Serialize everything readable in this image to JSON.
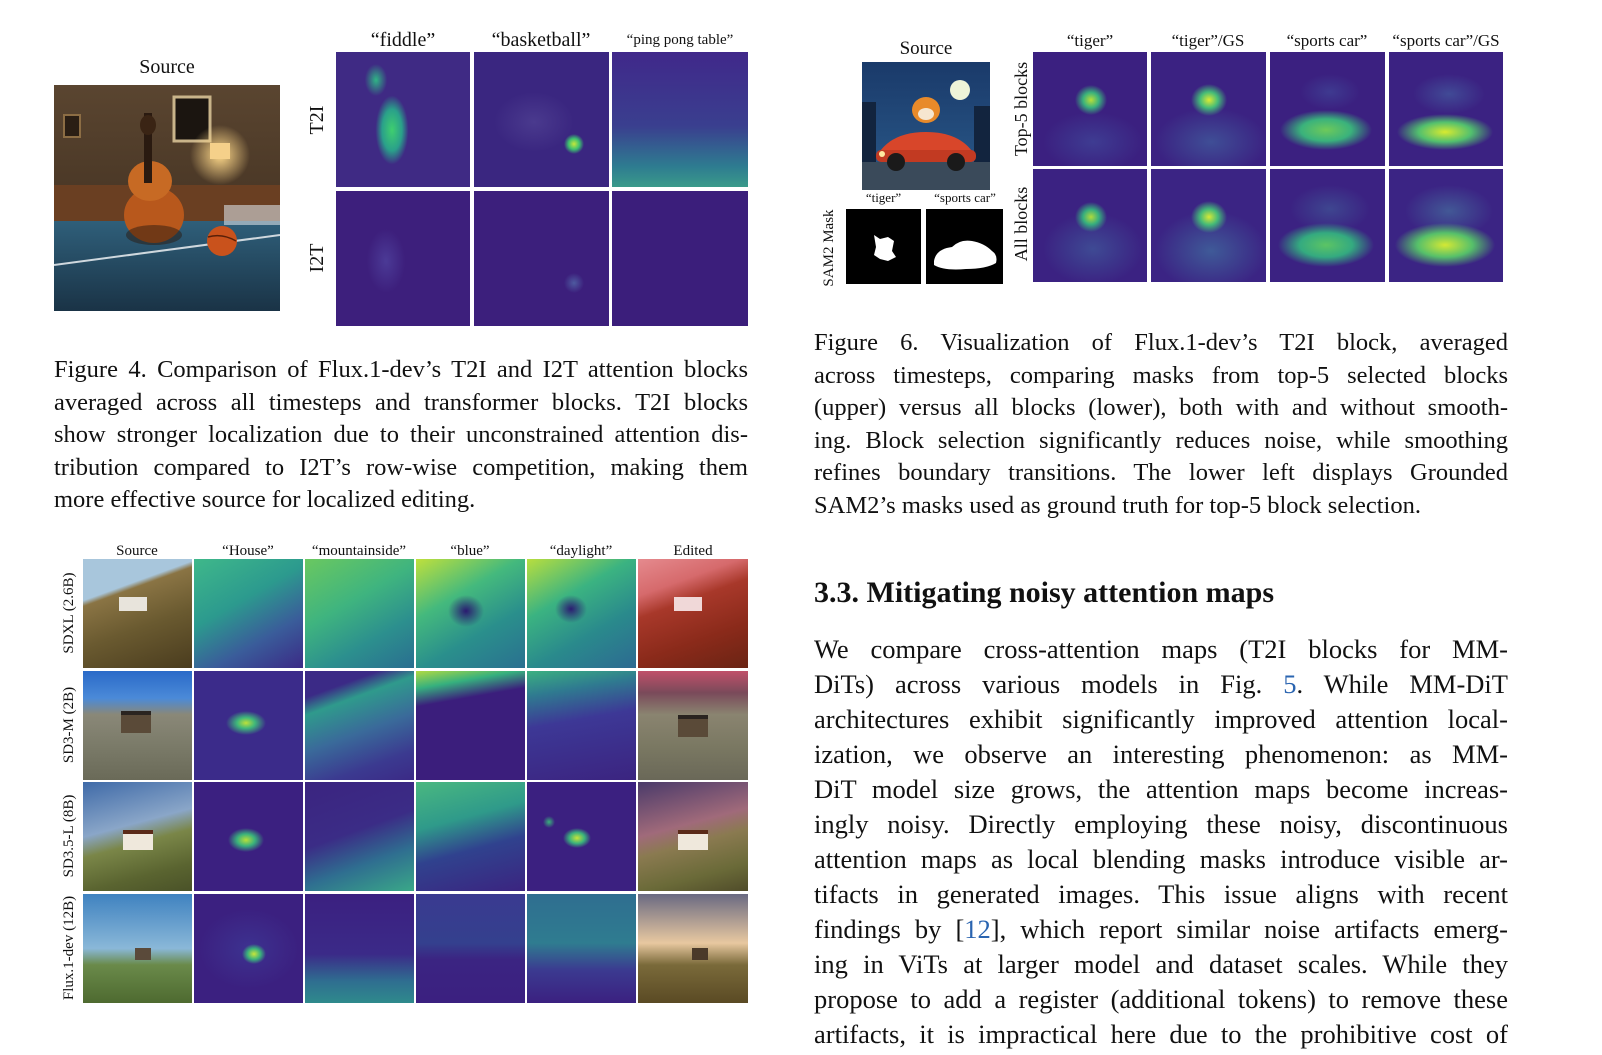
{
  "fig4": {
    "source_label": "Source",
    "col_labels": [
      "“fiddle”",
      "“basketball”",
      "“ping pong table”"
    ],
    "row_labels": [
      "T2I",
      "I2T"
    ],
    "caption_lines": [
      "Figure 4. Comparison of Flux.1-dev’s T2I and I2T attention blocks",
      "averaged across all timesteps and transformer blocks.  T2I blocks",
      "show stronger localization due to their unconstrained attention dis-",
      "tribution compared to I2T’s row-wise competition, making them",
      "more effective source for localized editing."
    ]
  },
  "fig5": {
    "col_labels": [
      "Source",
      "“House”",
      "“mountainside”",
      "“blue”",
      "“daylight”",
      "Edited"
    ],
    "row_labels": [
      "SDXL (2.6B)",
      "SD3-M (2B)",
      "SD3.5-L (8B)",
      "Flux.1-dev (12B)"
    ]
  },
  "fig6": {
    "source_label": "Source",
    "col_labels": [
      "“tiger”",
      "“tiger”/GS",
      "“sports car”",
      "“sports car”/GS"
    ],
    "row_labels": [
      "Top-5 blocks",
      "All blocks"
    ],
    "mask_title": "SAM2 Mask",
    "mask_labels": [
      "“tiger”",
      "“sports car”"
    ],
    "caption_lines": [
      "Figure 6.   Visualization of Flux.1-dev’s T2I block, averaged",
      "across timesteps, comparing masks from top-5 selected blocks",
      "(upper) versus all blocks (lower), both with and without smooth-",
      "ing. Block selection significantly reduces noise, while smoothing",
      "refines boundary transitions.  The lower left displays Grounded",
      "SAM2’s masks used as ground truth for top-5 block selection."
    ]
  },
  "section": {
    "title": "3.3. Mitigating noisy attention maps",
    "line1": "We compare cross-attention maps (T2I blocks for MM-",
    "line2_pre": "DiTs) across various models in Fig. ",
    "line2_ref": "5",
    "line2_post": ".  While MM-DiT",
    "line3": "architectures exhibit significantly improved attention local-",
    "line4": "ization, we observe an interesting phenomenon: as MM-",
    "line5": "DiT model size grows, the attention maps become increas-",
    "line6": "ingly noisy. Directly employing these noisy, discontinuous",
    "line7": "attention maps as local blending masks introduce visible ar-",
    "line8": "tifacts in generated images.  This issue aligns with recent",
    "line9_pre": "findings by [",
    "line9_ref": "12",
    "line9_post": "], which report similar noise artifacts emerg-",
    "line10": "ing in ViTs at larger model and dataset scales.  While they",
    "line11": "propose to add a register (additional tokens) to remove these",
    "line12": "artifacts, it is impractical here due to the prohibitive cost of"
  }
}
